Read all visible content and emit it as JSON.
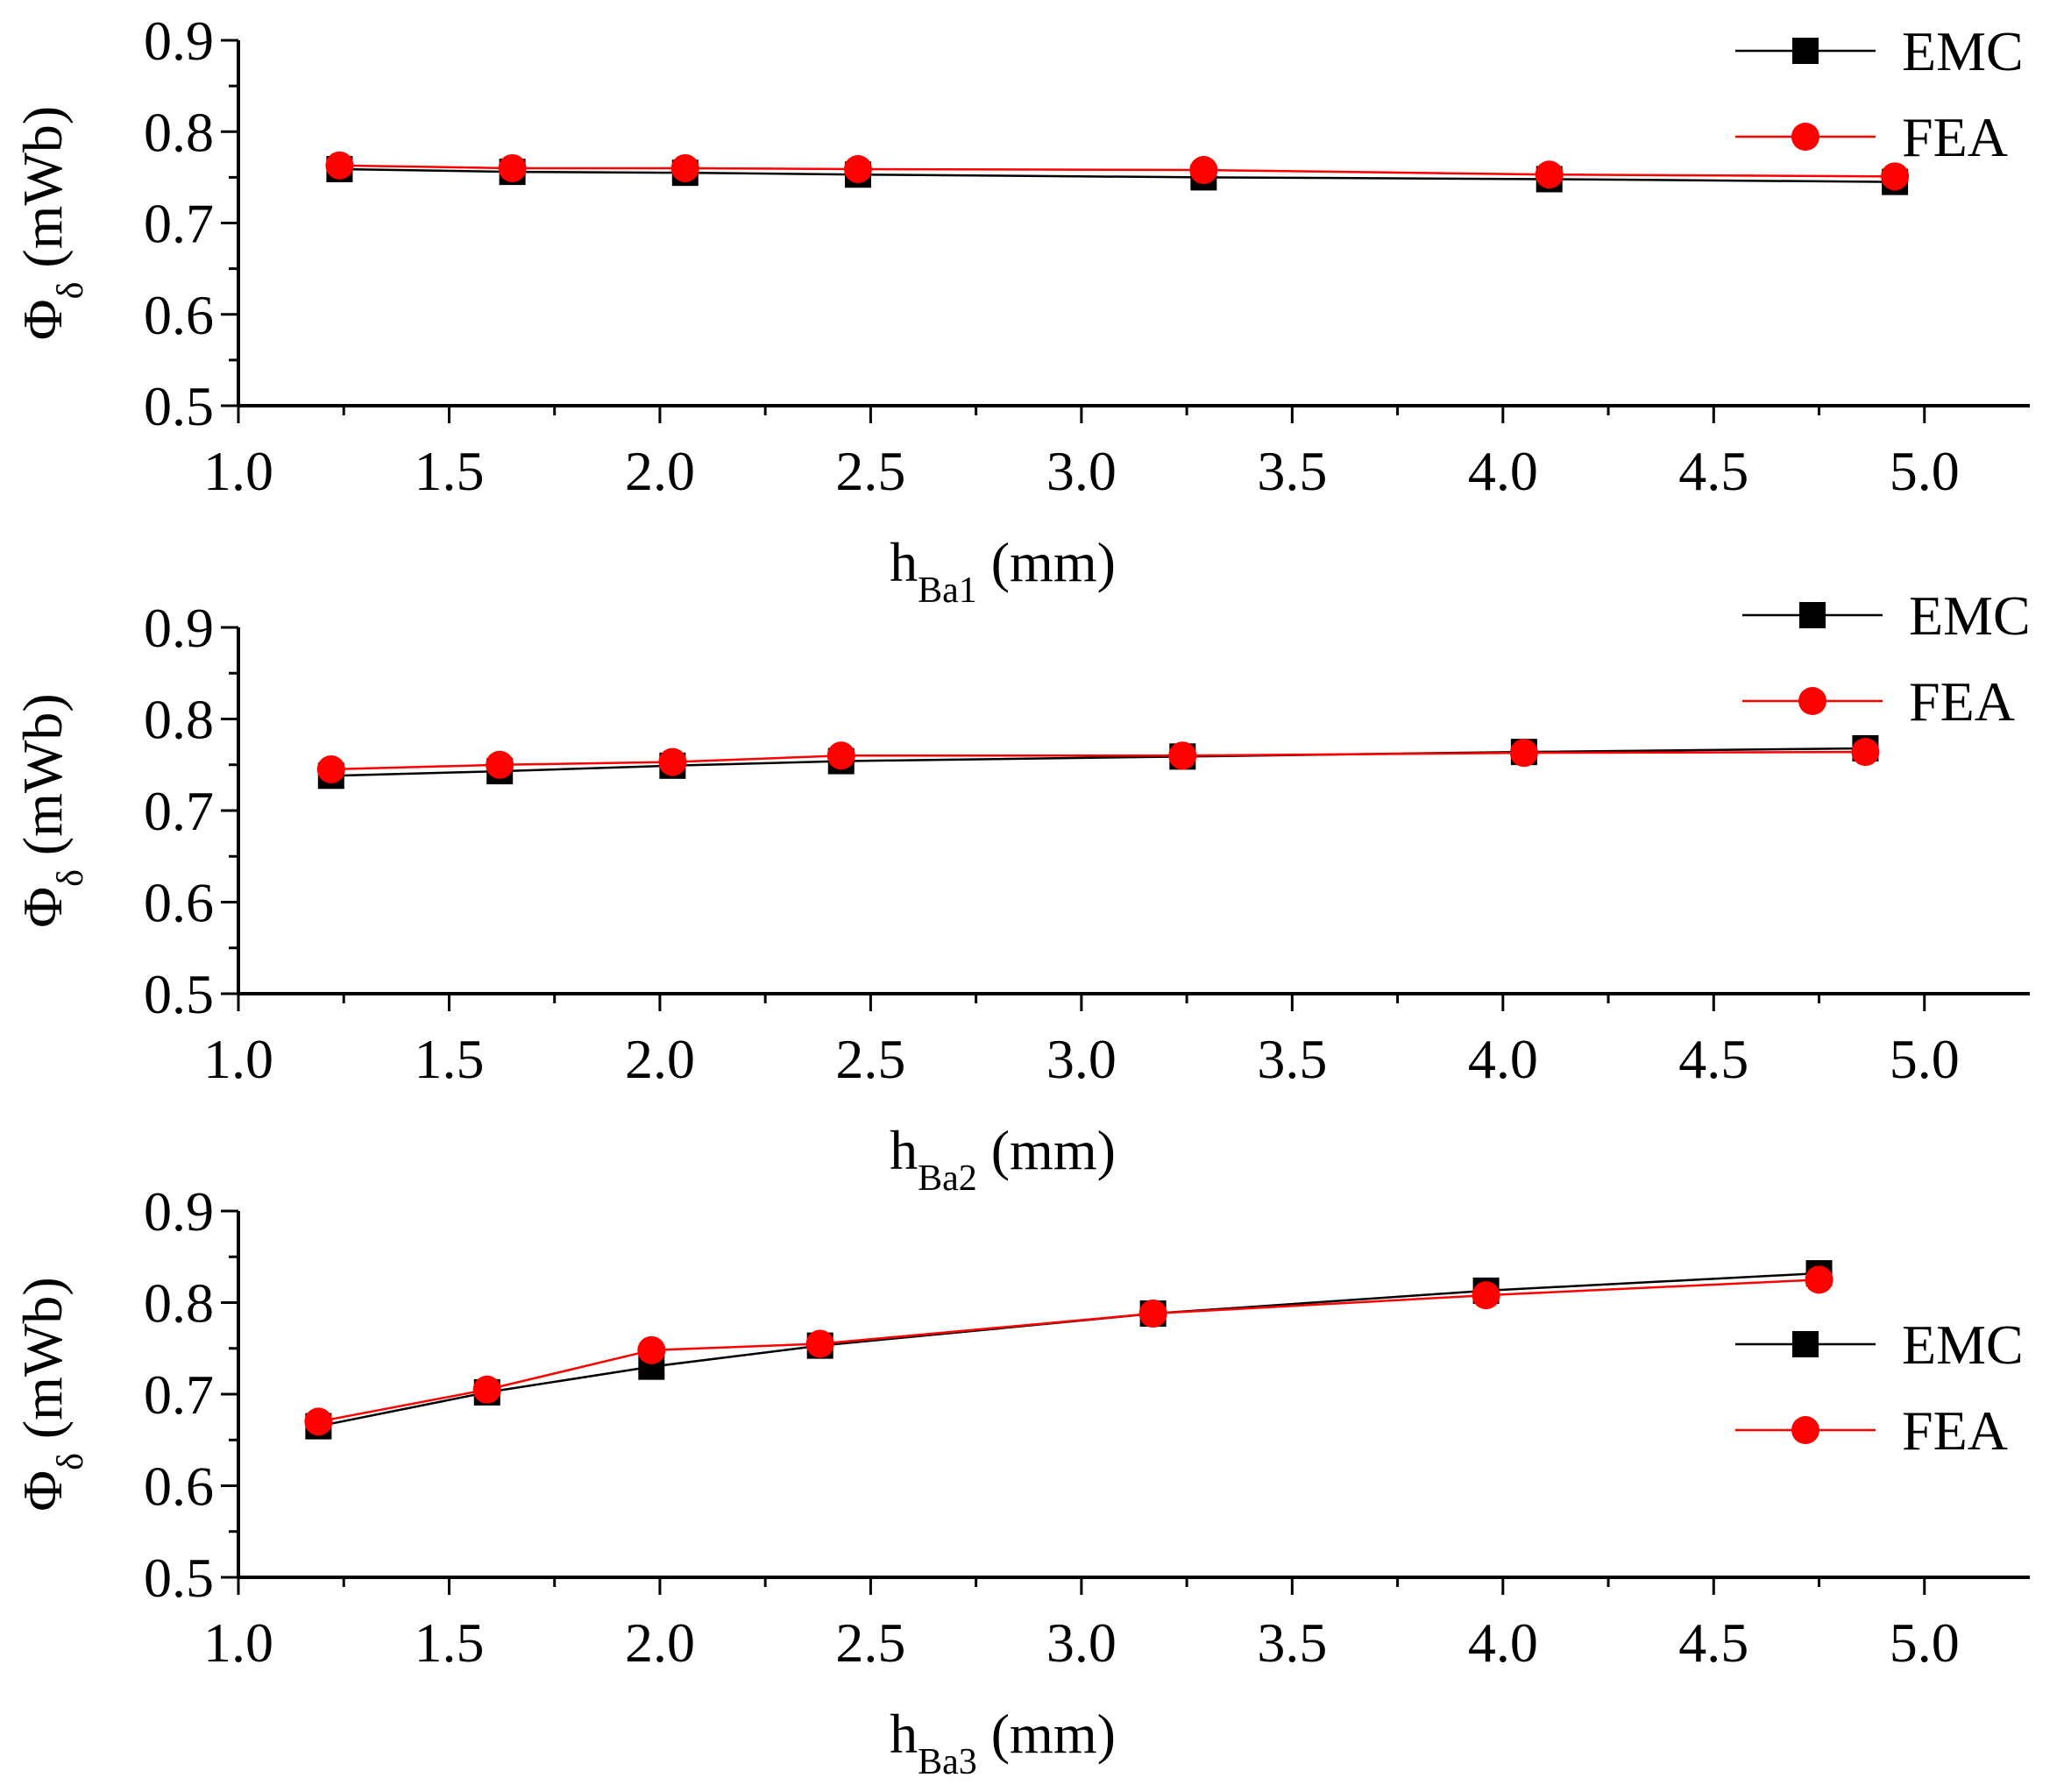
{
  "chart_data": [
    {
      "type": "line",
      "panel": "top",
      "xlabel": "h",
      "xlabel_sub": "Ba1",
      "xlabel_unit": "(mm)",
      "ylabel": "Φ",
      "ylabel_sub": "δ",
      "ylabel_unit": "(mWb)",
      "xlim": [
        1.0,
        5.25
      ],
      "ylim": [
        0.5,
        0.9
      ],
      "x_ticks": [
        "1.0",
        "1.5",
        "2.0",
        "2.5",
        "3.0",
        "3.5",
        "4.0",
        "4.5",
        "5.0"
      ],
      "y_ticks": [
        "0.5",
        "0.6",
        "0.7",
        "0.8",
        "0.9"
      ],
      "legend_position": "top-right",
      "series": [
        {
          "name": "EMC",
          "color": "#000000",
          "marker": "square",
          "x": [
            1.24,
            1.65,
            2.06,
            2.47,
            3.29,
            4.11,
            4.93
          ],
          "y": [
            0.759,
            0.756,
            0.755,
            0.753,
            0.75,
            0.748,
            0.745
          ]
        },
        {
          "name": "FEA",
          "color": "#ff0000",
          "marker": "circle",
          "x": [
            1.24,
            1.65,
            2.06,
            2.47,
            3.29,
            4.11,
            4.93
          ],
          "y": [
            0.763,
            0.76,
            0.76,
            0.759,
            0.758,
            0.753,
            0.751
          ]
        }
      ]
    },
    {
      "type": "line",
      "panel": "middle",
      "xlabel": "h",
      "xlabel_sub": "Ba2",
      "xlabel_unit": "(mm)",
      "ylabel": "Φ",
      "ylabel_sub": "δ",
      "ylabel_unit": "(mWb)",
      "xlim": [
        1.0,
        5.25
      ],
      "ylim": [
        0.5,
        0.9
      ],
      "x_ticks": [
        "1.0",
        "1.5",
        "2.0",
        "2.5",
        "3.0",
        "3.5",
        "4.0",
        "4.5",
        "5.0"
      ],
      "y_ticks": [
        "0.5",
        "0.6",
        "0.7",
        "0.8",
        "0.9"
      ],
      "legend_position": "top-right",
      "series": [
        {
          "name": "EMC",
          "color": "#000000",
          "marker": "square",
          "x": [
            1.22,
            1.62,
            2.03,
            2.43,
            3.24,
            4.05,
            4.86
          ],
          "y": [
            0.738,
            0.743,
            0.749,
            0.754,
            0.759,
            0.764,
            0.768
          ]
        },
        {
          "name": "FEA",
          "color": "#ff0000",
          "marker": "circle",
          "x": [
            1.22,
            1.62,
            2.03,
            2.43,
            3.24,
            4.05,
            4.86
          ],
          "y": [
            0.745,
            0.75,
            0.753,
            0.76,
            0.76,
            0.763,
            0.764
          ]
        }
      ]
    },
    {
      "type": "line",
      "panel": "bottom",
      "xlabel": "h",
      "xlabel_sub": "Ba3",
      "xlabel_unit": "(mm)",
      "ylabel": "Φ",
      "ylabel_sub": "δ",
      "ylabel_unit": "(mWb)",
      "xlim": [
        1.0,
        5.25
      ],
      "ylim": [
        0.5,
        0.9
      ],
      "x_ticks": [
        "1.0",
        "1.5",
        "2.0",
        "2.5",
        "3.0",
        "3.5",
        "4.0",
        "4.5",
        "5.0"
      ],
      "y_ticks": [
        "0.5",
        "0.6",
        "0.7",
        "0.8",
        "0.9"
      ],
      "legend_position": "right",
      "series": [
        {
          "name": "EMC",
          "color": "#000000",
          "marker": "square",
          "x": [
            1.19,
            1.59,
            1.98,
            2.38,
            3.17,
            3.96,
            4.75
          ],
          "y": [
            0.665,
            0.702,
            0.73,
            0.753,
            0.788,
            0.813,
            0.832
          ]
        },
        {
          "name": "FEA",
          "color": "#ff0000",
          "marker": "circle",
          "x": [
            1.19,
            1.59,
            1.98,
            2.38,
            3.17,
            3.96,
            4.75
          ],
          "y": [
            0.67,
            0.705,
            0.748,
            0.755,
            0.788,
            0.808,
            0.825
          ]
        }
      ]
    }
  ]
}
